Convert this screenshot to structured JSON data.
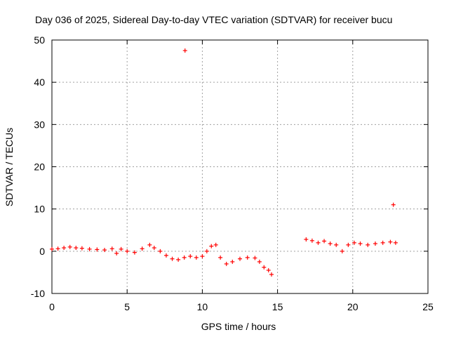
{
  "chart_data": {
    "type": "scatter",
    "title": "Day 036 of 2025, Sidereal Day-to-day VTEC variation (SDTVAR) for receiver bucu",
    "xlabel": "GPS time / hours",
    "ylabel": "SDTVAR / TECUs",
    "xlim": [
      0,
      25
    ],
    "ylim": [
      -10,
      50
    ],
    "xticks": [
      0,
      5,
      10,
      15,
      20,
      25
    ],
    "yticks": [
      -10,
      0,
      10,
      20,
      30,
      40,
      50
    ],
    "grid": true,
    "marker": "+",
    "series": [
      {
        "name": "SDTVAR",
        "color": "#ff0000",
        "x": [
          0.0,
          0.4,
          0.8,
          1.2,
          1.6,
          2.0,
          2.5,
          3.0,
          3.5,
          4.0,
          4.3,
          4.6,
          5.0,
          5.5,
          6.0,
          6.5,
          6.8,
          7.2,
          7.6,
          8.0,
          8.4,
          8.8,
          9.2,
          9.6,
          10.0,
          10.3,
          10.6,
          10.9,
          11.2,
          11.6,
          12.0,
          12.5,
          13.0,
          13.5,
          13.8,
          14.1,
          14.4,
          14.6,
          8.85,
          16.9,
          17.3,
          17.7,
          18.1,
          18.5,
          18.9,
          19.3,
          19.7,
          20.1,
          20.5,
          21.0,
          21.5,
          22.0,
          22.5,
          22.85,
          22.7
        ],
        "y": [
          0.5,
          0.6,
          0.8,
          1.0,
          0.8,
          0.7,
          0.5,
          0.4,
          0.3,
          0.6,
          -0.5,
          0.5,
          0.0,
          -0.3,
          0.6,
          1.5,
          0.8,
          0.0,
          -1.0,
          -1.8,
          -2.0,
          -1.5,
          -1.2,
          -1.5,
          -1.2,
          0.0,
          1.2,
          1.5,
          -1.5,
          -3.0,
          -2.5,
          -1.8,
          -1.5,
          -1.6,
          -2.5,
          -3.8,
          -4.5,
          -5.5,
          47.5,
          2.8,
          2.5,
          2.0,
          2.4,
          1.8,
          1.5,
          0.0,
          1.5,
          2.0,
          1.8,
          1.5,
          1.8,
          2.0,
          2.2,
          2.0,
          11.0
        ]
      }
    ]
  }
}
